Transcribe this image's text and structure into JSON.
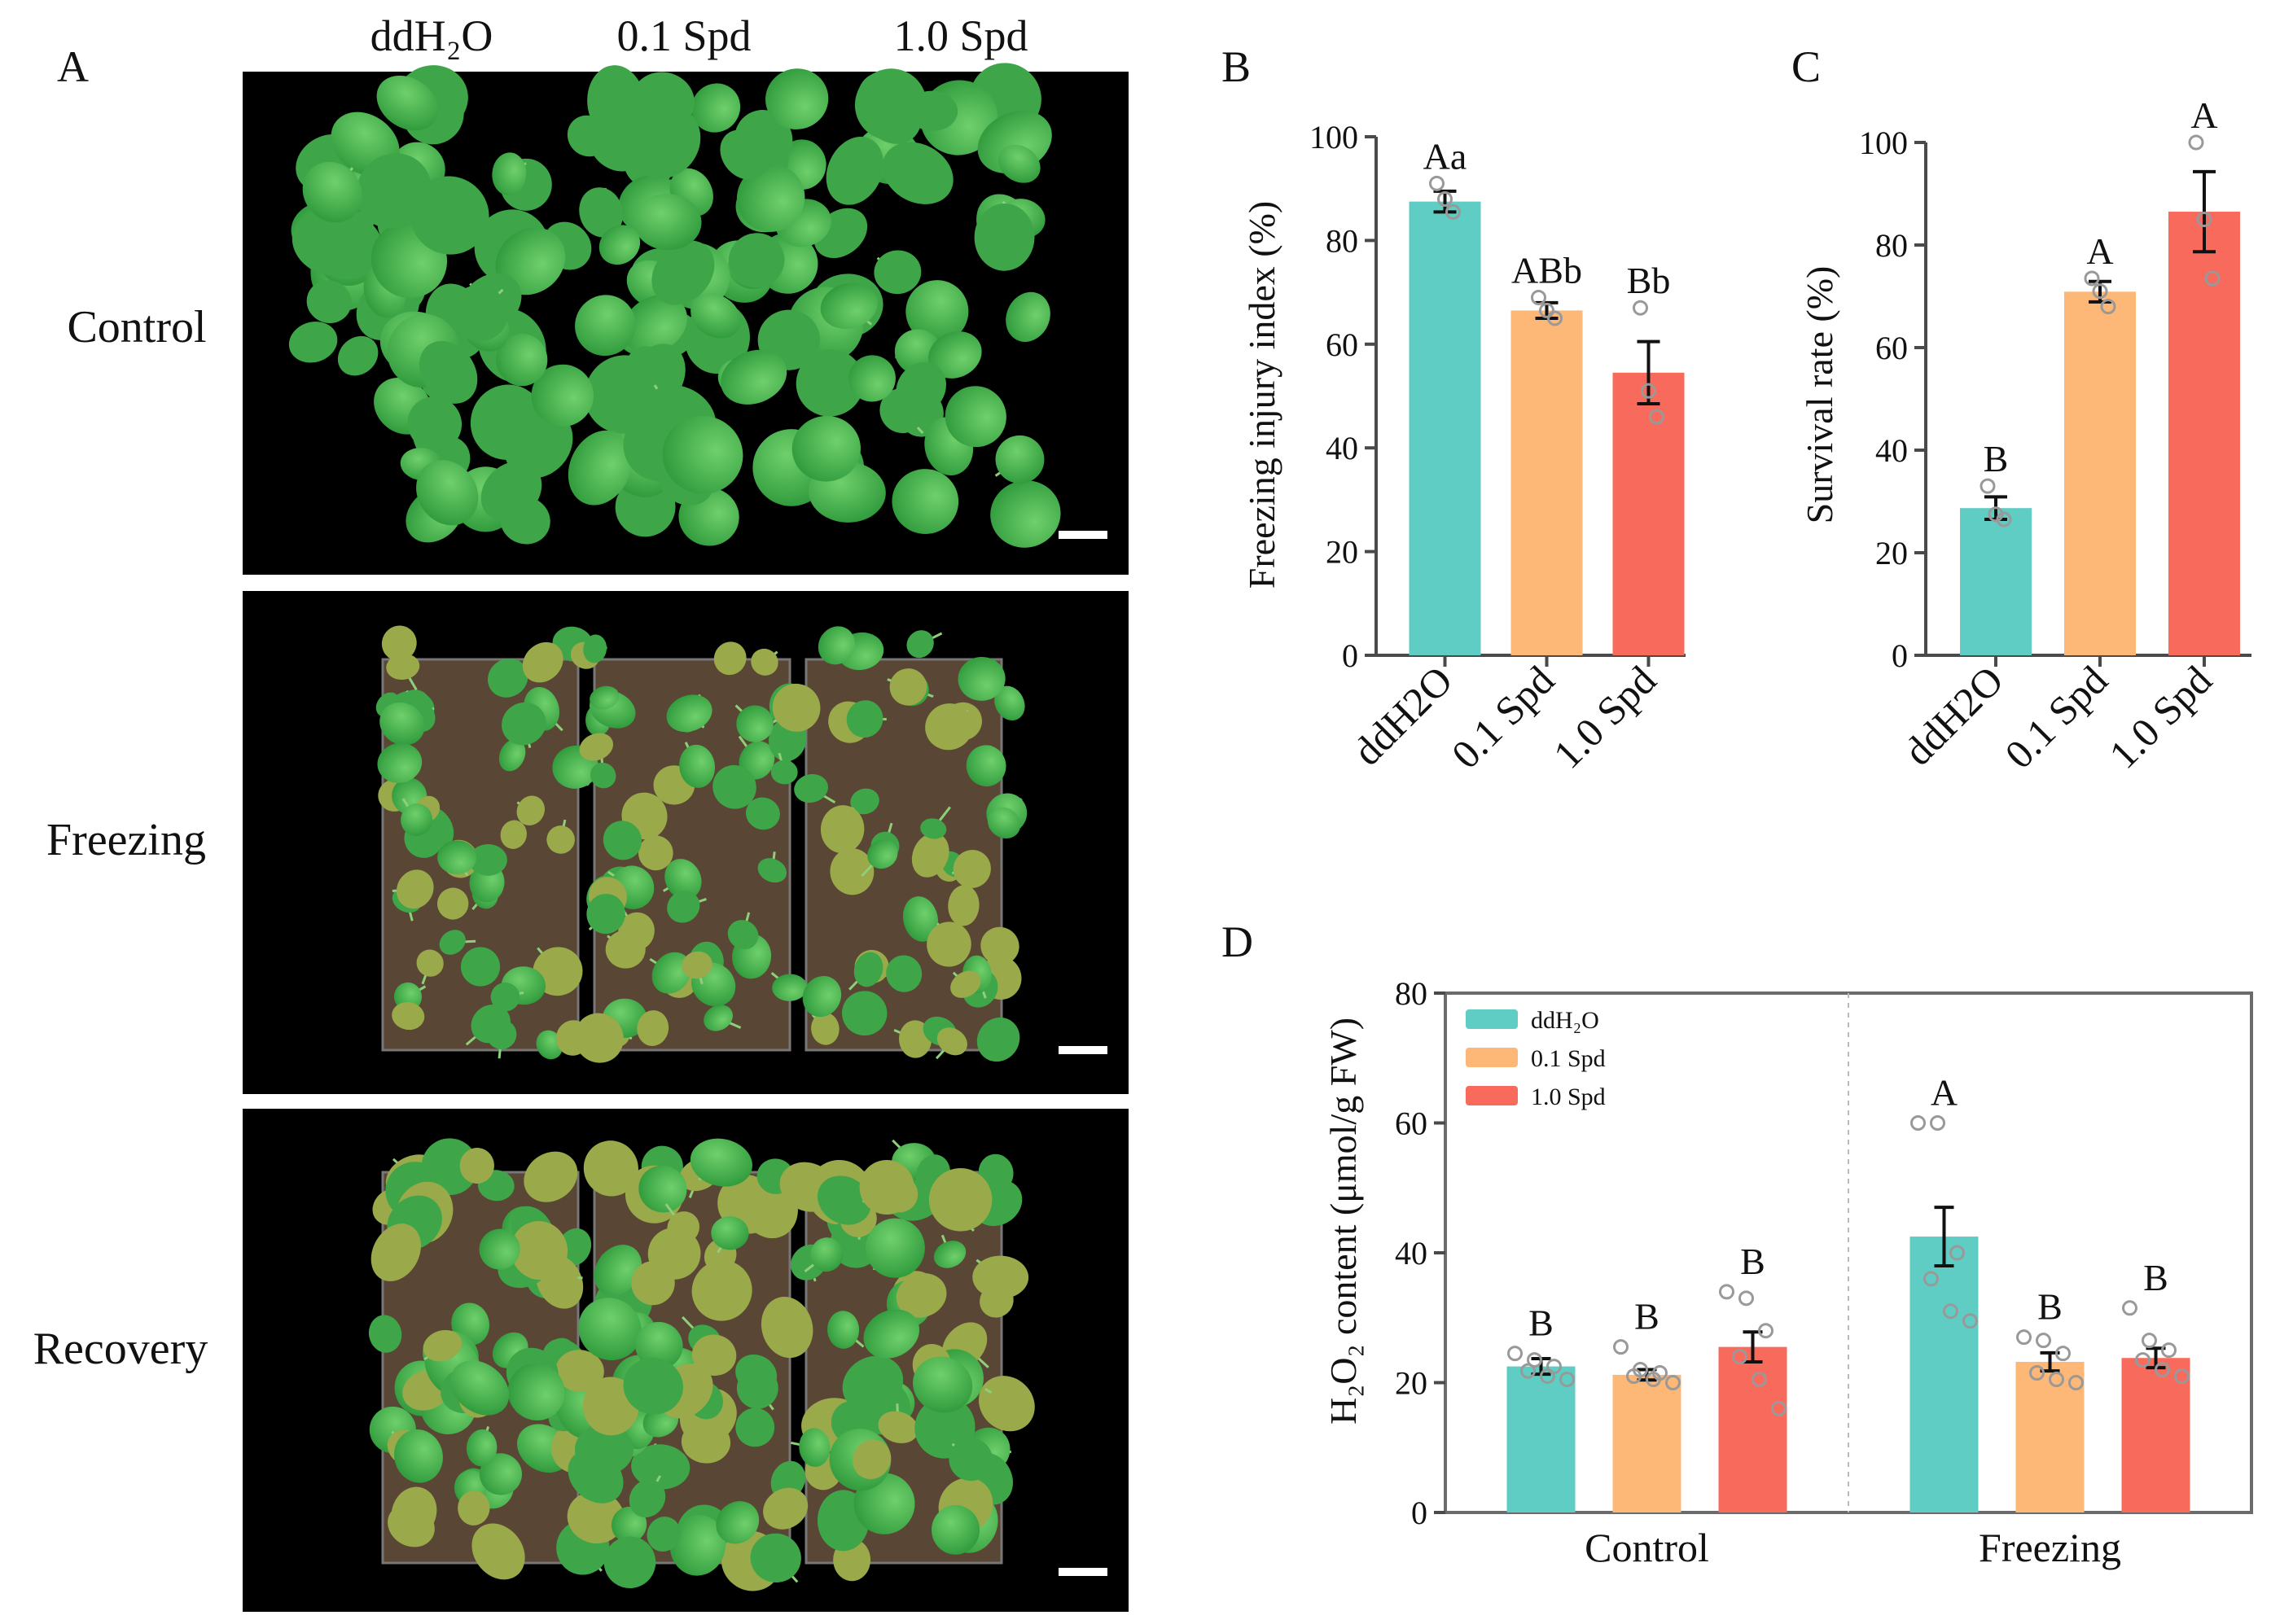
{
  "panels": {
    "A": {
      "letter": "A",
      "columns": [
        "ddH₂O",
        "0.1 Spd",
        "1.0 Spd"
      ],
      "rows": [
        "Control",
        "Freezing",
        "Recovery"
      ]
    },
    "B": {
      "letter": "B"
    },
    "C": {
      "letter": "C"
    },
    "D": {
      "letter": "D"
    }
  },
  "colors": {
    "ddH2O": "#5fcdc3",
    "spd01": "#fdb777",
    "spd10": "#f86a5c",
    "photo_bg": "#000000",
    "leaf": "#3fae4a",
    "soil": "#5a4634"
  },
  "chart_data": [
    {
      "id": "B",
      "type": "bar",
      "categories": [
        "ddH2O",
        "0.1 Spd",
        "1.0 Spd"
      ],
      "values": [
        87.5,
        66.5,
        54.5
      ],
      "errors": [
        2.0,
        1.5,
        6.0
      ],
      "points": [
        [
          91,
          88,
          85.5
        ],
        [
          69,
          66.5,
          65
        ],
        [
          67,
          51,
          46
        ]
      ],
      "significance": [
        "Aa",
        "ABb",
        "Bb"
      ],
      "ylabel": "Freezing injury index (%)",
      "ylim": [
        0,
        100
      ],
      "yticks": [
        0,
        20,
        40,
        60,
        80,
        100
      ]
    },
    {
      "id": "C",
      "type": "bar",
      "categories": [
        "ddH2O",
        "0.1 Spd",
        "1.0 Spd"
      ],
      "values": [
        28.7,
        70.9,
        86.5
      ],
      "errors": [
        2.2,
        2.0,
        7.8
      ],
      "points": [
        [
          33,
          27.5,
          26.5
        ],
        [
          73.5,
          71,
          68
        ],
        [
          100,
          85,
          73.5
        ]
      ],
      "significance": [
        "B",
        "A",
        "A"
      ],
      "ylabel": "Survival rate (%)",
      "ylim": [
        0,
        100
      ],
      "yticks": [
        0,
        20,
        40,
        60,
        80,
        100
      ]
    },
    {
      "id": "D",
      "type": "bar",
      "groups": [
        "Control",
        "Freezing"
      ],
      "ylabel": "H₂O₂ content (μmol/g FW)",
      "ylim": [
        0,
        80
      ],
      "yticks": [
        0,
        20,
        40,
        60,
        80
      ],
      "legend": [
        "ddH₂O",
        "0.1 Spd",
        "1.0 Spd"
      ],
      "legend_position": "top-left",
      "series": [
        {
          "name": "ddH₂O",
          "values": [
            22.5,
            42.5
          ],
          "errors": [
            1.2,
            4.5
          ],
          "significance": [
            "B",
            "A"
          ],
          "points": [
            [
              24.5,
              23.5,
              22.5,
              21.8,
              21,
              20.5
            ],
            [
              60,
              60,
              40,
              36,
              31,
              29.5
            ]
          ]
        },
        {
          "name": "0.1 Spd",
          "values": [
            21.2,
            23.2
          ],
          "errors": [
            0.8,
            1.4
          ],
          "significance": [
            "B",
            "B"
          ],
          "points": [
            [
              25.5,
              22,
              21.5,
              21,
              20.5,
              20
            ],
            [
              27,
              26.5,
              24.5,
              21.5,
              20.5,
              20
            ]
          ]
        },
        {
          "name": "1.0 Spd",
          "values": [
            25.5,
            23.8
          ],
          "errors": [
            2.3,
            1.5
          ],
          "significance": [
            "B",
            "B"
          ],
          "points": [
            [
              34,
              33,
              28,
              24,
              20.5,
              16
            ],
            [
              31.5,
              26.5,
              25,
              23.5,
              22,
              21
            ]
          ]
        }
      ]
    }
  ]
}
